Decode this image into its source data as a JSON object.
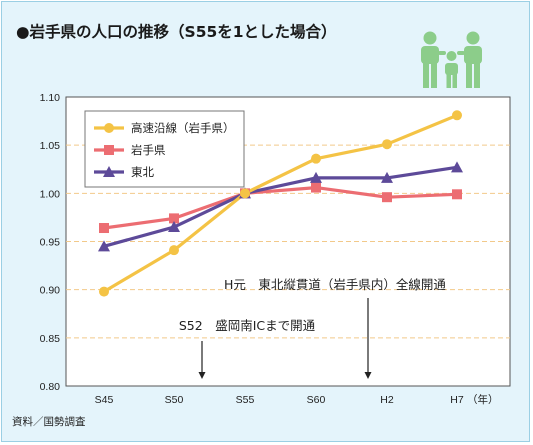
{
  "chart_data": {
    "type": "line",
    "title": "●岩手県の人口の推移（S55を1とした場合）",
    "xlabel": "",
    "ylabel": "",
    "categories": [
      "S45",
      "S50",
      "S55",
      "S60",
      "H2",
      "H7"
    ],
    "x_unit": "（年）",
    "ylim": [
      0.8,
      1.1
    ],
    "y_ticks": [
      "0.80",
      "0.85",
      "0.90",
      "0.95",
      "1.00",
      "1.05",
      "1.10"
    ],
    "grid": true,
    "legend_position": "top-left",
    "series": [
      {
        "name": "高速沿線（岩手県）",
        "values": [
          0.898,
          0.941,
          1.0,
          1.036,
          1.051,
          1.081
        ],
        "color": "#f4c345",
        "marker": "circle"
      },
      {
        "name": "岩手県",
        "values": [
          0.964,
          0.974,
          1.0,
          1.006,
          0.996,
          0.999
        ],
        "color": "#ec6d72",
        "marker": "square"
      },
      {
        "name": "東北",
        "values": [
          0.945,
          0.965,
          1.0,
          1.016,
          1.016,
          1.027
        ],
        "color": "#5d4a99",
        "marker": "triangle"
      }
    ],
    "annotations": [
      {
        "text": "S52　盛岡南ICまで開通",
        "x_between": [
          "S50",
          "S55"
        ],
        "x_fraction": 0.2
      },
      {
        "text": "H元　東北縦貫道（岩手県内）全線開通",
        "x_between": [
          "S60",
          "H2"
        ],
        "x_fraction": 0.8
      }
    ],
    "source": "資料／国勢調査"
  },
  "icon": "family-icon",
  "colors": {
    "background": "#e4f4fb",
    "plot_area": "#ffffff",
    "grid": "#f2c98a",
    "icon": "#8ccd8a"
  }
}
